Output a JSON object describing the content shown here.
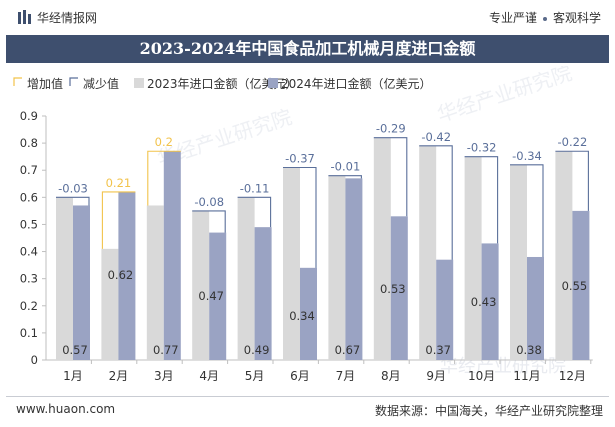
{
  "header": {
    "logo_text": "华经情报网",
    "tagline_left": "专业严谨",
    "tagline_right": "客观科学"
  },
  "title": "2023-2024年中国食品加工机械月度进口金额",
  "footer": {
    "website": "www.huaon.com",
    "source": "数据来源：中国海关，华经产业研究院整理"
  },
  "colors": {
    "band": "#3e4f6e",
    "bar_2023": "#d9d9d9",
    "bar_2024": "#9aa3c3",
    "increase": "#f2c34b",
    "decrease": "#5a6f9a"
  },
  "chart_data": {
    "type": "bar",
    "categories": [
      "1月",
      "2月",
      "3月",
      "4月",
      "5月",
      "6月",
      "7月",
      "8月",
      "9月",
      "10月",
      "11月",
      "12月"
    ],
    "series": [
      {
        "name": "2023年进口金额（亿美元）",
        "values": [
          0.6,
          0.41,
          0.57,
          0.55,
          0.6,
          0.71,
          0.68,
          0.82,
          0.79,
          0.75,
          0.72,
          0.77
        ]
      },
      {
        "name": "2024年进口金额（亿美元）",
        "values": [
          0.57,
          0.62,
          0.77,
          0.47,
          0.49,
          0.34,
          0.67,
          0.53,
          0.37,
          0.43,
          0.38,
          0.55
        ]
      }
    ],
    "changes": [
      "-0.03",
      "0.21",
      "0.2",
      "-0.08",
      "-0.11",
      "-0.37",
      "-0.01",
      "-0.29",
      "-0.42",
      "-0.32",
      "-0.34",
      "-0.22"
    ],
    "legend": [
      "增加值",
      "减少值",
      "2023年进口金额（亿美元）",
      "2024年进口金额（亿美元）"
    ],
    "yticks": [
      "0",
      "0.1",
      "0.2",
      "0.3",
      "0.4",
      "0.5",
      "0.6",
      "0.7",
      "0.8",
      "0.9"
    ],
    "ylim": [
      0,
      0.9
    ],
    "legend_position": "top-left",
    "watermark": "华经产业研究院"
  }
}
